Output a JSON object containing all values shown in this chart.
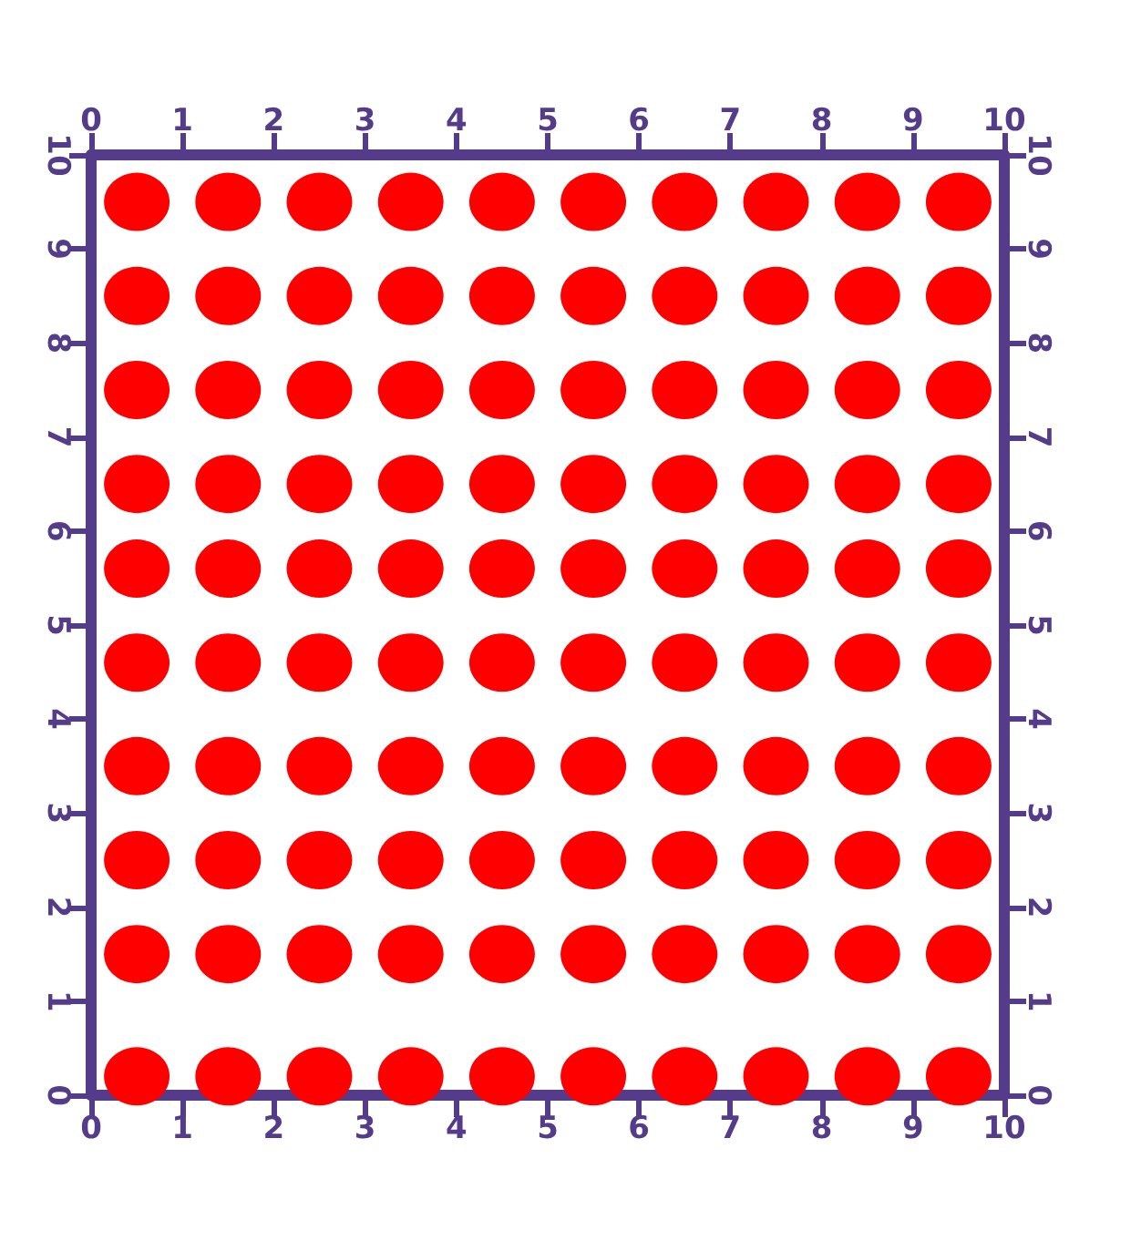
{
  "chart_data": {
    "type": "scatter",
    "marker": "circle",
    "grid": false,
    "x": [
      0.5,
      1.5,
      2.5,
      3.5,
      4.5,
      5.5,
      6.5,
      7.5,
      8.5,
      9.5,
      0.5,
      1.5,
      2.5,
      3.5,
      4.5,
      5.5,
      6.5,
      7.5,
      8.5,
      9.5,
      0.5,
      1.5,
      2.5,
      3.5,
      4.5,
      5.5,
      6.5,
      7.5,
      8.5,
      9.5,
      0.5,
      1.5,
      2.5,
      3.5,
      4.5,
      5.5,
      6.5,
      7.5,
      8.5,
      9.5,
      0.5,
      1.5,
      2.5,
      3.5,
      4.5,
      5.5,
      6.5,
      7.5,
      8.5,
      9.5,
      0.5,
      1.5,
      2.5,
      3.5,
      4.5,
      5.5,
      6.5,
      7.5,
      8.5,
      9.5,
      0.5,
      1.5,
      2.5,
      3.5,
      4.5,
      5.5,
      6.5,
      7.5,
      8.5,
      9.5,
      0.5,
      1.5,
      2.5,
      3.5,
      4.5,
      5.5,
      6.5,
      7.5,
      8.5,
      9.5,
      0.5,
      1.5,
      2.5,
      3.5,
      4.5,
      5.5,
      6.5,
      7.5,
      8.5,
      9.5,
      0.5,
      1.5,
      2.5,
      3.5,
      4.5,
      5.5,
      6.5,
      7.5,
      8.5,
      9.5
    ],
    "series": [
      {
        "color": "#ff0000",
        "values": [
          0.2,
          0.2,
          0.2,
          0.2,
          0.2,
          0.2,
          0.2,
          0.2,
          0.2,
          0.2,
          1.5,
          1.5,
          1.5,
          1.5,
          1.5,
          1.5,
          1.5,
          1.5,
          1.5,
          1.5,
          2.5,
          2.5,
          2.5,
          2.5,
          2.5,
          2.5,
          2.5,
          2.5,
          2.5,
          2.5,
          3.5,
          3.5,
          3.5,
          3.5,
          3.5,
          3.5,
          3.5,
          3.5,
          3.5,
          3.5,
          4.6,
          4.6,
          4.6,
          4.6,
          4.6,
          4.6,
          4.6,
          4.6,
          4.6,
          4.6,
          5.6,
          5.6,
          5.6,
          5.6,
          5.6,
          5.6,
          5.6,
          5.6,
          5.6,
          5.6,
          6.5,
          6.5,
          6.5,
          6.5,
          6.5,
          6.5,
          6.5,
          6.5,
          6.5,
          6.5,
          7.5,
          7.5,
          7.5,
          7.5,
          7.5,
          7.5,
          7.5,
          7.5,
          7.5,
          7.5,
          8.5,
          8.5,
          8.5,
          8.5,
          8.5,
          8.5,
          8.5,
          8.5,
          8.5,
          8.5,
          9.5,
          9.5,
          9.5,
          9.5,
          9.5,
          9.5,
          9.5,
          9.5,
          9.5,
          9.5
        ]
      }
    ],
    "xlim": [
      0,
      10
    ],
    "xticks": [
      0,
      1,
      2,
      3,
      4,
      5,
      6,
      7,
      8,
      9,
      10
    ],
    "x2lim": [
      0,
      10
    ],
    "x2ticks": [
      0,
      1,
      2,
      3,
      4,
      5,
      6,
      7,
      8,
      9,
      10
    ],
    "ylim": [
      0,
      10
    ],
    "yticks": [
      0,
      1,
      2,
      3,
      4,
      5,
      6,
      7,
      8,
      9,
      10
    ],
    "y2lim": [
      0,
      10
    ],
    "y2ticks": [
      0,
      1,
      2,
      3,
      4,
      5,
      6,
      7,
      8,
      9,
      10
    ]
  }
}
